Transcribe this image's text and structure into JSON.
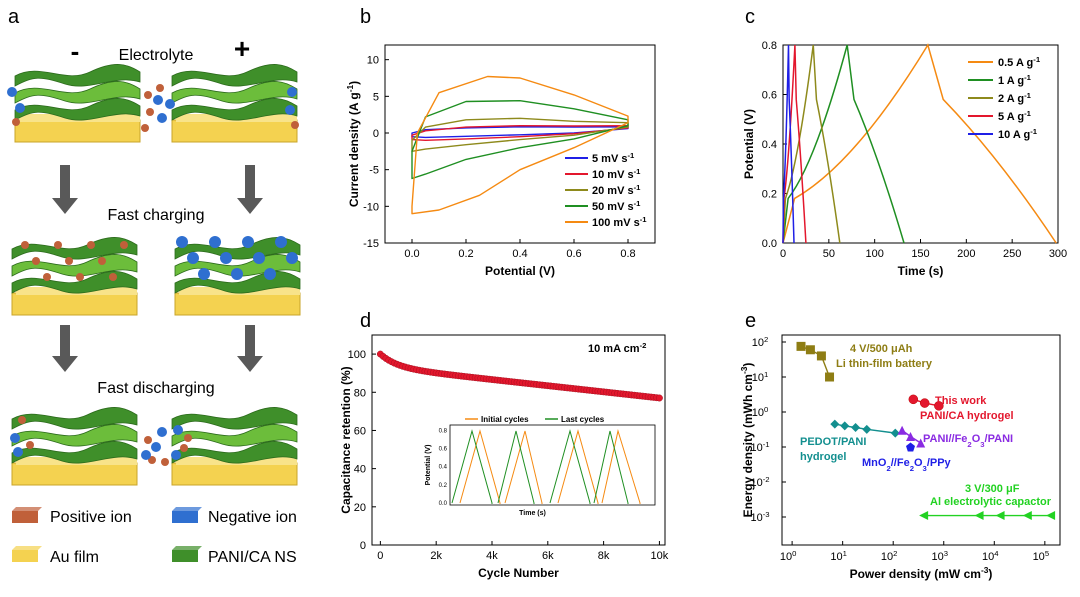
{
  "panels": {
    "a": "a",
    "b": "b",
    "c": "c",
    "d": "d",
    "e": "e"
  },
  "schematic": {
    "minus": "-",
    "plus": "+",
    "electrolyte": "Electrolyte",
    "fast_charging": "Fast charging",
    "fast_discharging": "Fast discharging",
    "legend": {
      "positive_ion": "Positive ion",
      "negative_ion": "Negative ion",
      "au_film": "Au film",
      "pani_ca_ns": "PANI/CA NS"
    },
    "colors": {
      "film": "#f4d250",
      "sheet": "#3f8f2a",
      "sheet_light": "#6cbd3b",
      "positive": "#c0603a",
      "negative": "#2f6fd0",
      "arrow": "#595959"
    }
  },
  "chart_data": [
    {
      "id": "b",
      "type": "line",
      "title": "",
      "xlabel": "Potential (V)",
      "ylabel": "Current density (A g-1)",
      "xlim": [
        -0.1,
        0.9
      ],
      "ylim": [
        -15,
        12
      ],
      "xticks": [
        "0.0",
        "0.2",
        "0.4",
        "0.6",
        "0.8"
      ],
      "yticks": [
        "-15",
        "-10",
        "-5",
        "0",
        "5",
        "10"
      ],
      "series": [
        {
          "name": "5 mV s-1",
          "color": "#1f1fe6",
          "upper": [
            [
              0,
              0.0
            ],
            [
              0.05,
              0.45
            ],
            [
              0.2,
              0.7
            ],
            [
              0.4,
              0.85
            ],
            [
              0.6,
              0.8
            ],
            [
              0.8,
              0.85
            ]
          ],
          "lower": [
            [
              0.8,
              0.6
            ],
            [
              0.6,
              0.0
            ],
            [
              0.4,
              -0.25
            ],
            [
              0.2,
              -0.45
            ],
            [
              0.05,
              -0.6
            ],
            [
              0,
              -0.5
            ]
          ]
        },
        {
          "name": "10 mV s-1",
          "color": "#e3172d",
          "upper": [
            [
              0,
              -0.3
            ],
            [
              0.05,
              0.3
            ],
            [
              0.2,
              0.8
            ],
            [
              0.4,
              1.0
            ],
            [
              0.6,
              0.95
            ],
            [
              0.8,
              1.0
            ]
          ],
          "lower": [
            [
              0.8,
              0.7
            ],
            [
              0.6,
              -0.1
            ],
            [
              0.4,
              -0.5
            ],
            [
              0.2,
              -0.8
            ],
            [
              0.05,
              -1.0
            ],
            [
              0,
              -0.9
            ]
          ]
        },
        {
          "name": "20 mV s-1",
          "color": "#8e8a1c",
          "upper": [
            [
              0,
              -1.0
            ],
            [
              0.05,
              0.8
            ],
            [
              0.2,
              1.8
            ],
            [
              0.4,
              2.0
            ],
            [
              0.6,
              1.6
            ],
            [
              0.8,
              1.4
            ]
          ],
          "lower": [
            [
              0.8,
              0.8
            ],
            [
              0.6,
              -0.3
            ],
            [
              0.4,
              -0.9
            ],
            [
              0.2,
              -1.6
            ],
            [
              0.05,
              -2.2
            ],
            [
              0,
              -2.5
            ]
          ]
        },
        {
          "name": "50 mV s-1",
          "color": "#1f8f22",
          "upper": [
            [
              0,
              -2.5
            ],
            [
              0.05,
              2.2
            ],
            [
              0.2,
              4.3
            ],
            [
              0.4,
              4.4
            ],
            [
              0.6,
              3.3
            ],
            [
              0.8,
              1.8
            ]
          ],
          "lower": [
            [
              0.8,
              1.0
            ],
            [
              0.6,
              -0.8
            ],
            [
              0.4,
              -2.0
            ],
            [
              0.2,
              -3.6
            ],
            [
              0.05,
              -5.6
            ],
            [
              0,
              -6.2
            ]
          ]
        },
        {
          "name": "100 mV s-1",
          "color": "#f58a12",
          "upper": [
            [
              0,
              -10
            ],
            [
              0.02,
              0.0
            ],
            [
              0.1,
              5.5
            ],
            [
              0.28,
              7.7
            ],
            [
              0.4,
              7.5
            ],
            [
              0.6,
              5.2
            ],
            [
              0.8,
              2.3
            ]
          ],
          "lower": [
            [
              0.8,
              1.4
            ],
            [
              0.6,
              -2.0
            ],
            [
              0.4,
              -5.0
            ],
            [
              0.25,
              -8.5
            ],
            [
              0.1,
              -10.5
            ],
            [
              0,
              -11.0
            ]
          ]
        }
      ]
    },
    {
      "id": "c",
      "type": "line",
      "title": "",
      "xlabel": "Time (s)",
      "ylabel": "Potential (V)",
      "xlim": [
        0,
        300
      ],
      "ylim": [
        0,
        0.8
      ],
      "xticks": [
        "0",
        "50",
        "100",
        "150",
        "200",
        "250",
        "300"
      ],
      "yticks": [
        "0.0",
        "0.2",
        "0.4",
        "0.6",
        "0.8"
      ],
      "series": [
        {
          "name": "0.5 A g-1",
          "color": "#f58a12",
          "peak_t": 158,
          "end_t": 298
        },
        {
          "name": "1 A g-1",
          "color": "#1f8f22",
          "peak_t": 70,
          "end_t": 132
        },
        {
          "name": "2 A g-1",
          "color": "#8e8a1c",
          "peak_t": 33,
          "end_t": 62
        },
        {
          "name": "5 A g-1",
          "color": "#e3172d",
          "peak_t": 13,
          "end_t": 25
        },
        {
          "name": "10 A g-1",
          "color": "#1f1fe6",
          "peak_t": 6,
          "end_t": 12
        }
      ]
    },
    {
      "id": "d",
      "type": "scatter",
      "title": "",
      "annotation": "10 mA cm-2",
      "xlabel": "Cycle Number",
      "ylabel": "Capacitance retention (%)",
      "xlim": [
        -300,
        10200
      ],
      "ylim": [
        0,
        110
      ],
      "xticks": [
        "0",
        "2k",
        "4k",
        "6k",
        "8k",
        "10k"
      ],
      "yticks": [
        "0",
        "20",
        "40",
        "60",
        "80",
        "100"
      ],
      "marker_color": "#e3172d",
      "start_value": 100,
      "end_value": 77,
      "inset": {
        "xlabel": "Time (s)",
        "ylabel": "Potential (V)",
        "yticks": [
          "0.0",
          "0.2",
          "0.4",
          "0.6",
          "0.8"
        ],
        "series": [
          {
            "name": "Initial cycles",
            "color": "#f58a12"
          },
          {
            "name": "Last cycles",
            "color": "#1f8f22"
          }
        ]
      }
    },
    {
      "id": "e",
      "type": "scatter",
      "title": "",
      "xlabel": "Power density (mW cm-3)",
      "ylabel": "Energy density (mWh cm-3)",
      "xscale": "log",
      "yscale": "log",
      "xlim_log": [
        -0.2,
        5.3
      ],
      "ylim_log": [
        -3.8,
        2.2
      ],
      "xticks": [
        "10^0",
        "10^1",
        "10^2",
        "10^3",
        "10^4",
        "10^5"
      ],
      "yticks": [
        "10^-3",
        "10^-2",
        "10^-1",
        "10^0",
        "10^1",
        "10^2"
      ],
      "series": [
        {
          "name": "4 V/500 μAh Li thin-film battery",
          "color": "#8e7d14",
          "marker": "square",
          "points": [
            [
              1.5,
              75
            ],
            [
              2.3,
              60
            ],
            [
              3.8,
              40
            ],
            [
              5.5,
              10
            ]
          ]
        },
        {
          "name": "This work PANI/CA hydrogel",
          "color": "#e3172d",
          "marker": "circle",
          "points": [
            [
              250,
              2.3
            ],
            [
              420,
              1.8
            ],
            [
              800,
              1.5
            ]
          ]
        },
        {
          "name": "PEDOT/PANI hydrogel",
          "color": "#138f8f",
          "marker": "diamond",
          "points": [
            [
              7,
              0.45
            ],
            [
              11,
              0.4
            ],
            [
              18,
              0.36
            ],
            [
              30,
              0.32
            ],
            [
              110,
              0.25
            ]
          ]
        },
        {
          "name": "PANI//Fe2O3/PANI",
          "color": "#8a2be2",
          "marker": "triangle",
          "points": [
            [
              150,
              0.3
            ],
            [
              220,
              0.2
            ],
            [
              350,
              0.13
            ]
          ]
        },
        {
          "name": "MnO2//Fe2O3/PPy",
          "color": "#1f1fe6",
          "marker": "pentagon",
          "points": [
            [
              220,
              0.1
            ]
          ]
        },
        {
          "name": "3 V/300 μF Al electrolytic capactor",
          "color": "#22d222",
          "marker": "triangle-left",
          "points": [
            [
              400,
              0.0011
            ],
            [
              5000,
              0.0011
            ],
            [
              13000,
              0.0011
            ],
            [
              45000,
              0.0011
            ],
            [
              130000,
              0.0011
            ]
          ]
        }
      ],
      "labels": {
        "li": [
          "4 V/500 μAh",
          "Li thin-film battery"
        ],
        "this_work": [
          "This work",
          "PANI/CA hydrogel"
        ],
        "pedot": [
          "PEDOT/PANI",
          "hydrogel"
        ],
        "pani_fe": "PANI//Fe2O3/PANI",
        "mno2": "MnO2//Fe2O3/PPy",
        "al": [
          "3 V/300 μF",
          "Al electrolytic capactor"
        ]
      }
    }
  ]
}
